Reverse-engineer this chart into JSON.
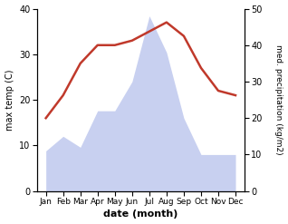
{
  "months": [
    "Jan",
    "Feb",
    "Mar",
    "Apr",
    "May",
    "Jun",
    "Jul",
    "Aug",
    "Sep",
    "Oct",
    "Nov",
    "Dec"
  ],
  "max_temp": [
    16,
    21,
    28,
    32,
    32,
    33,
    35,
    37,
    34,
    27,
    22,
    21
  ],
  "precipitation": [
    11,
    15,
    12,
    22,
    22,
    30,
    48,
    38,
    20,
    10,
    10,
    10
  ],
  "temp_color": "#c0392b",
  "precip_fill_color": "#c8d0f0",
  "temp_ylim": [
    0,
    40
  ],
  "precip_ylim": [
    0,
    50
  ],
  "temp_yticks": [
    0,
    10,
    20,
    30,
    40
  ],
  "precip_yticks": [
    0,
    10,
    20,
    30,
    40,
    50
  ],
  "ylabel_left": "max temp (C)",
  "ylabel_right": "med. precipitation (kg/m2)",
  "xlabel": "date (month)",
  "figsize": [
    3.18,
    2.47
  ],
  "dpi": 100
}
